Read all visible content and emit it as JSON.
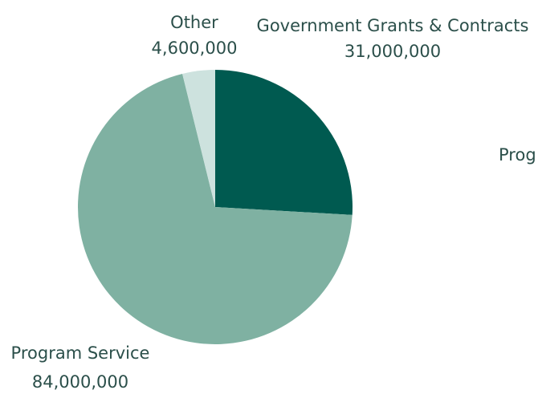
{
  "chart_data": {
    "type": "pie",
    "title": "",
    "slices": [
      {
        "label": "Government Grants & Contracts",
        "value": 31000000,
        "value_label": "31,000,000",
        "color": "#005a50"
      },
      {
        "label": "Program Service",
        "value": 84000000,
        "value_label": "84,000,000",
        "color": "#7fb1a2"
      },
      {
        "label": "Other",
        "value": 4600000,
        "value_label": "4,600,000",
        "color": "#cde2de"
      }
    ],
    "clipped_text": "Prog"
  }
}
